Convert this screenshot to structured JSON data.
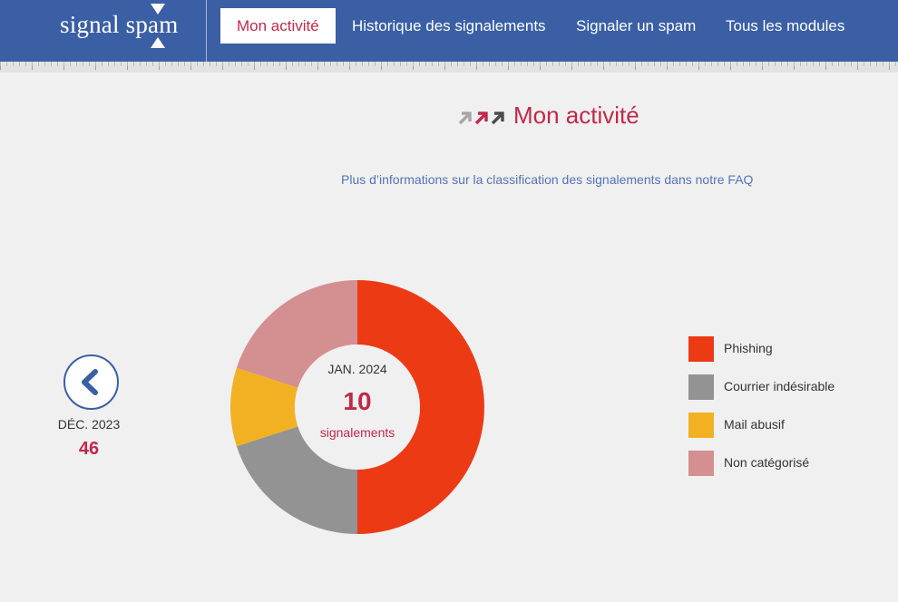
{
  "header": {
    "logo_text": "signal spam",
    "nav": [
      {
        "label": "Mon activité",
        "active": true
      },
      {
        "label": "Historique des signalements",
        "active": false
      },
      {
        "label": "Signaler un spam",
        "active": false
      },
      {
        "label": "Tous les modules",
        "active": false
      }
    ]
  },
  "main": {
    "title": "Mon activité",
    "faq_link": "Plus d’informations sur la classification des signalements dans notre FAQ",
    "previous": {
      "month": "DÉC. 2023",
      "count": "46"
    },
    "current": {
      "month": "JAN. 2024",
      "count": "10",
      "unit": "signalements"
    }
  },
  "colors": {
    "brand": "#3a5fa5",
    "accent": "#c0294a",
    "title_arrows": [
      "#a6a6a6",
      "#c0294a",
      "#4a4a4a"
    ]
  },
  "chart_data": {
    "type": "pie",
    "variant": "donut",
    "categories": [
      "Phishing",
      "Courrier indésirable",
      "Mail abusif",
      "Non catégorisé"
    ],
    "values": [
      5,
      2,
      1,
      2
    ],
    "colors": [
      "#ec3a15",
      "#939393",
      "#f2b122",
      "#d48f91"
    ],
    "legend_position": "right"
  }
}
